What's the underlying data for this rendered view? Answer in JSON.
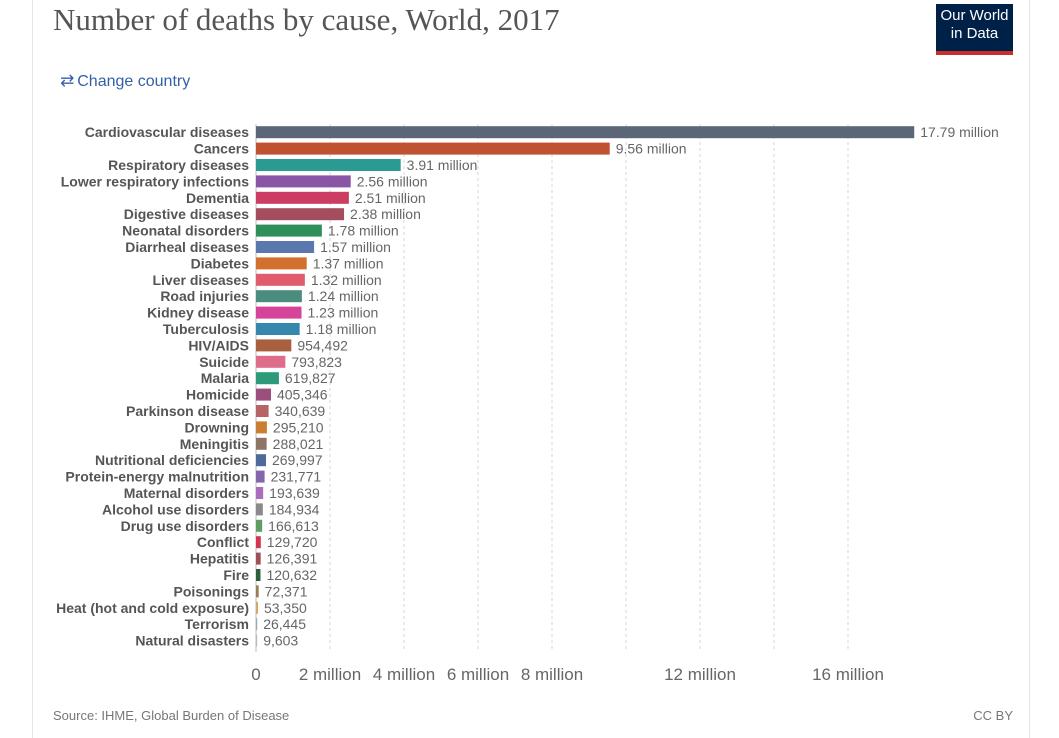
{
  "header": {
    "title": "Number of deaths by cause, World, 2017",
    "logo_line1": "Our World",
    "logo_line2": "in Data",
    "change_country": "Change country"
  },
  "footer": {
    "source": "Source: IHME, Global Burden of Disease",
    "license": "CC BY"
  },
  "chart_data": {
    "type": "bar",
    "orientation": "horizontal",
    "title": "Number of deaths by cause, World, 2017",
    "xlim": [
      0,
      18000000
    ],
    "grid": true,
    "x_ticks": [
      0,
      2000000,
      4000000,
      6000000,
      8000000,
      12000000,
      16000000
    ],
    "x_tick_labels": [
      "0",
      "2 million",
      "4 million",
      "6 million",
      "8 million",
      "12 million",
      "16 million"
    ],
    "gridlines": [
      2000000,
      4000000,
      6000000,
      8000000,
      10000000,
      12000000,
      14000000,
      16000000
    ],
    "categories": [
      "Cardiovascular diseases",
      "Cancers",
      "Respiratory diseases",
      "Lower respiratory infections",
      "Dementia",
      "Digestive diseases",
      "Neonatal disorders",
      "Diarrheal diseases",
      "Diabetes",
      "Liver diseases",
      "Road injuries",
      "Kidney disease",
      "Tuberculosis",
      "HIV/AIDS",
      "Suicide",
      "Malaria",
      "Homicide",
      "Parkinson disease",
      "Drowning",
      "Meningitis",
      "Nutritional deficiencies",
      "Protein-energy malnutrition",
      "Maternal disorders",
      "Alcohol use disorders",
      "Drug use disorders",
      "Conflict",
      "Hepatitis",
      "Fire",
      "Poisonings",
      "Heat (hot and cold exposure)",
      "Terrorism",
      "Natural disasters"
    ],
    "values": [
      17790000,
      9560000,
      3910000,
      2560000,
      2510000,
      2380000,
      1780000,
      1570000,
      1370000,
      1320000,
      1240000,
      1230000,
      1180000,
      954492,
      793823,
      619827,
      405346,
      340639,
      295210,
      288021,
      269997,
      231771,
      193639,
      184934,
      166613,
      129720,
      126391,
      120632,
      72371,
      53350,
      26445,
      9603
    ],
    "value_labels": [
      "17.79 million",
      "9.56 million",
      "3.91 million",
      "2.56 million",
      "2.51 million",
      "2.38 million",
      "1.78 million",
      "1.57 million",
      "1.37 million",
      "1.32 million",
      "1.24 million",
      "1.23 million",
      "1.18 million",
      "954,492",
      "793,823",
      "619,827",
      "405,346",
      "340,639",
      "295,210",
      "288,021",
      "269,997",
      "231,771",
      "193,639",
      "184,934",
      "166,613",
      "129,720",
      "126,391",
      "120,632",
      "72,371",
      "53,350",
      "26,445",
      "9,603"
    ],
    "colors": [
      "#5b6679",
      "#c0532f",
      "#2a9a93",
      "#8b55a6",
      "#cc3c63",
      "#a34d5e",
      "#2f8f5a",
      "#5a78ad",
      "#d2702f",
      "#e05c6e",
      "#4c8c7f",
      "#d6449a",
      "#3687ad",
      "#a9603e",
      "#de6c8b",
      "#2d9a7a",
      "#9a4f7c",
      "#b76464",
      "#ca7e31",
      "#8d7466",
      "#4d6a9b",
      "#8566ad",
      "#a96fbd",
      "#8a8a8a",
      "#5f9d63",
      "#d4344f",
      "#a04f58",
      "#2d5f3c",
      "#9c7b58",
      "#d9a46a",
      "#9aa7b7",
      "#bbbbbb"
    ]
  }
}
